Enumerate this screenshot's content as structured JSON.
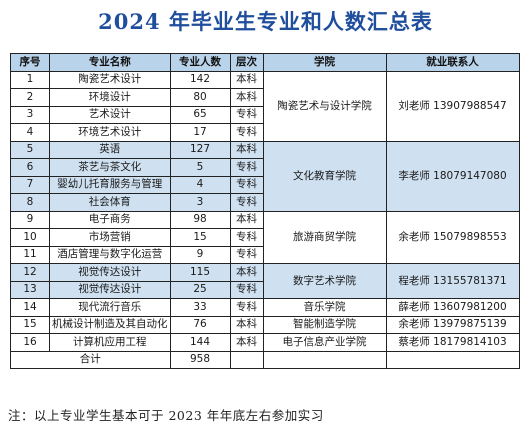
{
  "title": "2024 年毕业生专业和人数汇总表",
  "table": {
    "headers": [
      "序号",
      "专业名称",
      "专业人数",
      "层次",
      "学院",
      "就业联系人"
    ],
    "rows": [
      {
        "no": "1",
        "major": "陶瓷艺术设计",
        "count": "142",
        "level": "本科"
      },
      {
        "no": "2",
        "major": "环境设计",
        "count": "80",
        "level": "本科"
      },
      {
        "no": "3",
        "major": "艺术设计",
        "count": "65",
        "level": "专科"
      },
      {
        "no": "4",
        "major": "环境艺术设计",
        "count": "17",
        "level": "专科"
      },
      {
        "no": "5",
        "major": "英语",
        "count": "127",
        "level": "本科"
      },
      {
        "no": "6",
        "major": "茶艺与茶文化",
        "count": "5",
        "level": "专科"
      },
      {
        "no": "7",
        "major": "婴幼儿托育服务与管理",
        "count": "4",
        "level": "专科"
      },
      {
        "no": "8",
        "major": "社会体育",
        "count": "3",
        "level": "专科"
      },
      {
        "no": "9",
        "major": "电子商务",
        "count": "98",
        "level": "本科"
      },
      {
        "no": "10",
        "major": "市场营销",
        "count": "15",
        "level": "专科"
      },
      {
        "no": "11",
        "major": "酒店管理与数字化运营",
        "count": "9",
        "level": "专科"
      },
      {
        "no": "12",
        "major": "视觉传达设计",
        "count": "115",
        "level": "本科"
      },
      {
        "no": "13",
        "major": "视觉传达设计",
        "count": "25",
        "level": "专科"
      },
      {
        "no": "14",
        "major": "现代流行音乐",
        "count": "33",
        "level": "专科"
      },
      {
        "no": "15",
        "major": "机械设计制造及其自动化",
        "count": "76",
        "level": "本科"
      },
      {
        "no": "16",
        "major": "计算机应用工程",
        "count": "144",
        "level": "本科"
      }
    ],
    "groups": [
      {
        "college": "陶瓷艺术与设计学院",
        "contact": "刘老师 13907988547"
      },
      {
        "college": "文化教育学院",
        "contact": "李老师 18079147080"
      },
      {
        "college": "旅游商贸学院",
        "contact": "余老师 15079898553"
      },
      {
        "college": "数字艺术学院",
        "contact": "程老师 13155781371"
      },
      {
        "college": "音乐学院",
        "contact": "薛老师 13607981200"
      },
      {
        "college": "智能制造学院",
        "contact": "余老师 13979875139"
      },
      {
        "college": "电子信息产业学院",
        "contact": "蔡老师 18179814103"
      }
    ],
    "total_label": "合计",
    "total_value": "958"
  },
  "footnote": "注：以上专业学生基本可于 2023 年年底左右参加实习"
}
